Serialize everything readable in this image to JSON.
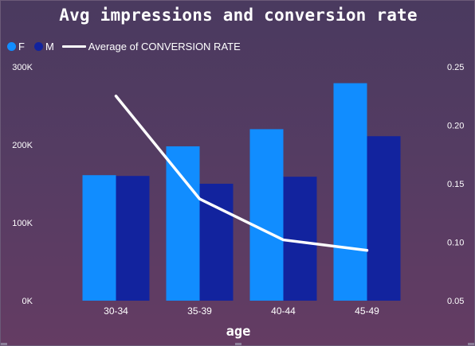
{
  "chart_data": {
    "type": "bar",
    "title": "Avg impressions and conversion rate",
    "xlabel": "age",
    "ylabel": "",
    "categories": [
      "30-34",
      "35-39",
      "40-44",
      "45-49"
    ],
    "series": [
      {
        "name": "F",
        "kind": "bar",
        "axis": "left",
        "color": "#118dff",
        "values": [
          161000,
          198000,
          220000,
          279000
        ]
      },
      {
        "name": "M",
        "kind": "bar",
        "axis": "left",
        "color": "#12239e",
        "values": [
          160000,
          150000,
          159000,
          211000
        ]
      },
      {
        "name": "Average of CONVERSION RATE",
        "kind": "line",
        "axis": "right",
        "color": "#ffffff",
        "values": [
          0.225,
          0.137,
          0.102,
          0.093
        ]
      }
    ],
    "ylim": [
      0,
      300000
    ],
    "y_ticks": [
      "0K",
      "100K",
      "200K",
      "300K"
    ],
    "y2lim": [
      0.05,
      0.25
    ],
    "y2_ticks": [
      "0.05",
      "0.10",
      "0.15",
      "0.20",
      "0.25"
    ],
    "grid": false,
    "legend_position": "top-left"
  }
}
